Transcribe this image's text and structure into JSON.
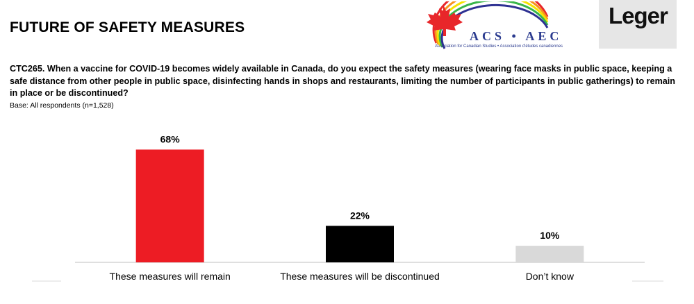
{
  "header": {
    "title": "FUTURE OF SAFETY MEASURES",
    "acs_logo": {
      "name": "ACS • AEC",
      "subtitle": "Association for Canadian Studies • Association d'études canadiennes",
      "icon": "maple-leaf-rainbow-icon"
    },
    "leger_logo": {
      "text": "Leger"
    }
  },
  "question": {
    "text": "CTC265. When a vaccine for COVID-19 becomes widely available in Canada, do you expect the safety measures (wearing face masks in public space, keeping a safe distance from other people in public space, disinfecting hands in shops and restaurants, limiting the number of participants in public gatherings) to remain in place or be discontinued?",
    "base": "Base: All respondents  (n=1,528)"
  },
  "chart_data": {
    "type": "bar",
    "title": "",
    "xlabel": "",
    "ylabel": "",
    "ylim": [
      0,
      100
    ],
    "grid": false,
    "categories": [
      "These measures will remain",
      "These measures will be discontinued",
      "Don’t know"
    ],
    "values": [
      68,
      22,
      10
    ],
    "data_labels": [
      "68%",
      "22%",
      "10%"
    ],
    "colors": [
      "#ed1c24",
      "#000000",
      "#d9d9d9"
    ]
  }
}
